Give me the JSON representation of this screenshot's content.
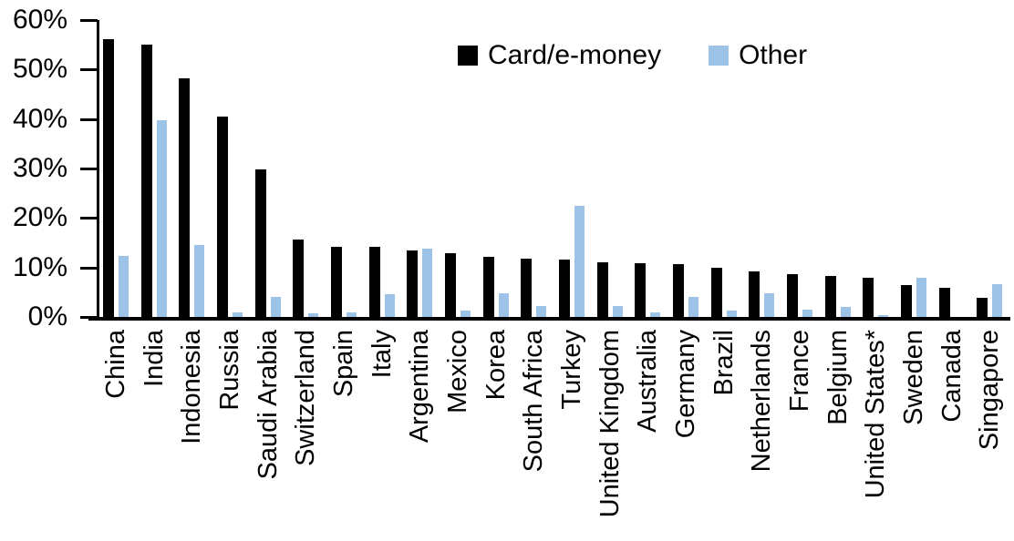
{
  "chart_data": {
    "type": "bar",
    "title": "",
    "xlabel": "",
    "ylabel": "",
    "ylim": [
      0,
      60
    ],
    "grid": false,
    "legend_position": "top-center",
    "ytick_labels": [
      "60%",
      "50%",
      "40%",
      "30%",
      "20%",
      "10%",
      "0%"
    ],
    "ytick_values": [
      60,
      50,
      40,
      30,
      20,
      10,
      0
    ],
    "categories": [
      "China",
      "India",
      "Indonesia",
      "Russia",
      "Saudi Arabia",
      "Switzerland",
      "Spain",
      "Italy",
      "Argentina",
      "Mexico",
      "Korea",
      "South Africa",
      "Turkey",
      "United Kingdom",
      "Australia",
      "Germany",
      "Brazil",
      "Netherlands",
      "France",
      "Belgium",
      "United States*",
      "Sweden",
      "Canada",
      "Singapore"
    ],
    "series": [
      {
        "name": "Card/e-money",
        "color": "#000000",
        "values": [
          56.2,
          55.0,
          48.3,
          40.5,
          29.8,
          15.6,
          14.2,
          14.1,
          13.4,
          12.9,
          12.2,
          11.7,
          11.6,
          11.1,
          10.8,
          10.6,
          10.0,
          9.2,
          8.7,
          8.2,
          7.9,
          6.5,
          5.9,
          3.9
        ]
      },
      {
        "name": "Other",
        "color": "#9DC3E6",
        "values": [
          12.3,
          39.8,
          14.6,
          1.0,
          4.0,
          0.8,
          1.0,
          4.6,
          13.8,
          1.3,
          4.7,
          2.3,
          22.5,
          2.3,
          1.0,
          4.0,
          1.2,
          4.8,
          1.5,
          2.0,
          0.3,
          8.0,
          0.0,
          6.6
        ]
      }
    ]
  }
}
